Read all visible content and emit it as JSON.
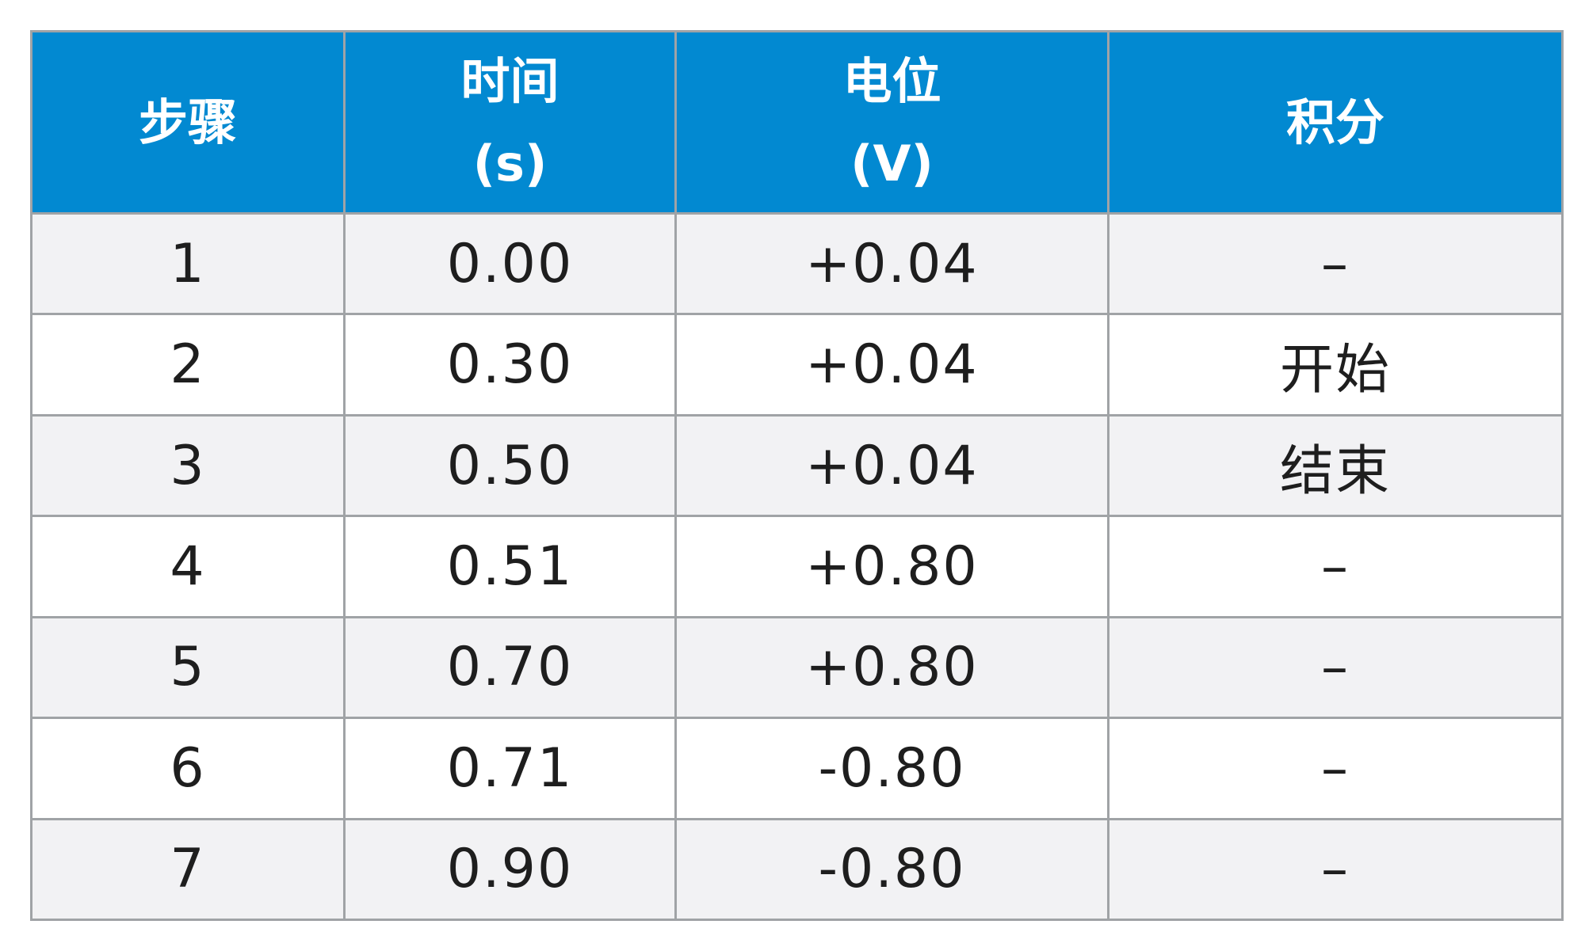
{
  "table": {
    "headers": [
      {
        "line1": "步骤",
        "line2": ""
      },
      {
        "line1": "时间",
        "line2": "(s)"
      },
      {
        "line1": "电位",
        "line2": "(V)"
      },
      {
        "line1": "积分",
        "line2": ""
      }
    ],
    "rows": [
      [
        "1",
        "0.00",
        "+0.04",
        "–"
      ],
      [
        "2",
        "0.30",
        "+0.04",
        "开始"
      ],
      [
        "3",
        "0.50",
        "+0.04",
        "结束"
      ],
      [
        "4",
        "0.51",
        "+0.80",
        "–"
      ],
      [
        "5",
        "0.70",
        "+0.80",
        "–"
      ],
      [
        "6",
        "0.71",
        "-0.80",
        "–"
      ],
      [
        "7",
        "0.90",
        "-0.80",
        "–"
      ]
    ]
  },
  "colors": {
    "header_bg": "#0289d1",
    "header_text": "#ffffff",
    "row_odd_bg": "#f2f2f4",
    "row_even_bg": "#ffffff",
    "border": "#a0a3a6"
  }
}
